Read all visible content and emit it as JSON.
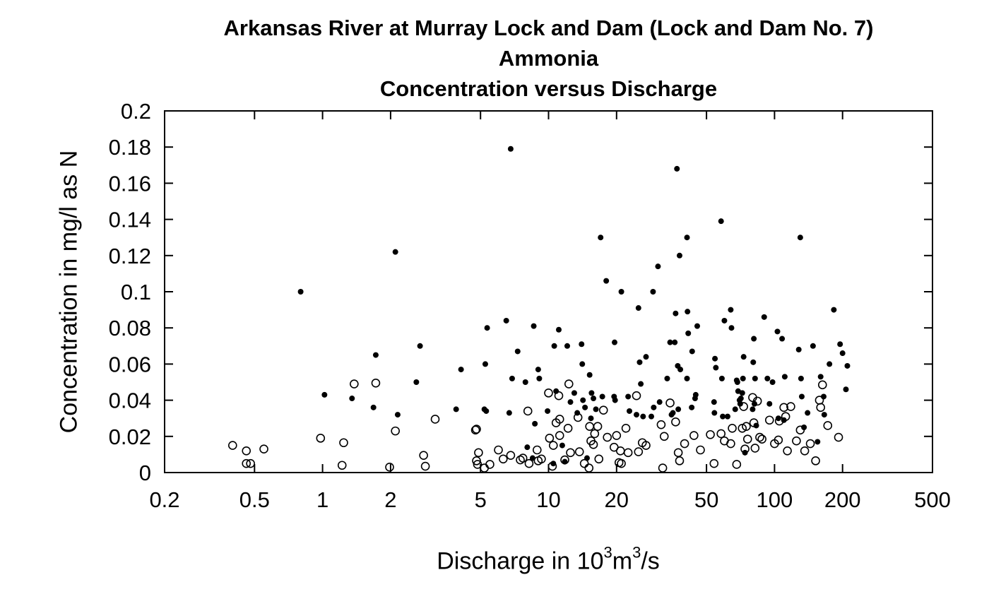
{
  "chart_data": {
    "type": "scatter",
    "title": "Arkansas River at Murray Lock and Dam (Lock and Dam No. 7)",
    "subtitle_lines": [
      "Ammonia",
      "Concentration versus Discharge"
    ],
    "xlabel": {
      "prefix": "Discharge in 10",
      "sup1": "3",
      "mid": "m",
      "sup2": "3",
      "suffix": "/s"
    },
    "ylabel": "Concentration in mg/l as N",
    "x_scale": "log",
    "xlim": [
      0.2,
      500
    ],
    "ylim": [
      0,
      0.2
    ],
    "x_ticks": [
      0.2,
      0.5,
      1,
      2,
      5,
      10,
      20,
      50,
      100,
      200,
      500
    ],
    "x_tick_labels": [
      "0.2",
      "0.5",
      "1",
      "2",
      "5",
      "10",
      "20",
      "50",
      "100",
      "200",
      "500"
    ],
    "y_ticks": [
      0,
      0.02,
      0.04,
      0.06,
      0.08,
      0.1,
      0.12,
      0.14,
      0.16,
      0.18,
      0.2
    ],
    "y_tick_labels": [
      "0",
      "0.02",
      "0.04",
      "0.06",
      "0.08",
      "0.1",
      "0.12",
      "0.14",
      "0.16",
      "0.18",
      "0.2"
    ],
    "grid": false,
    "series": [
      {
        "marker": "filled-circle",
        "points": [
          [
            0.8,
            0.1
          ],
          [
            1.02,
            0.043
          ],
          [
            1.35,
            0.041
          ],
          [
            1.68,
            0.036
          ],
          [
            1.72,
            0.065
          ],
          [
            2.1,
            0.122
          ],
          [
            2.15,
            0.032
          ],
          [
            2.6,
            0.05
          ],
          [
            2.7,
            0.07
          ],
          [
            3.9,
            0.035
          ],
          [
            4.1,
            0.057
          ],
          [
            5.2,
            0.035
          ],
          [
            5.25,
            0.06
          ],
          [
            5.35,
            0.08
          ],
          [
            5.3,
            0.034
          ],
          [
            6.5,
            0.084
          ],
          [
            6.7,
            0.033
          ],
          [
            6.8,
            0.179
          ],
          [
            6.9,
            0.052
          ],
          [
            7.3,
            0.067
          ],
          [
            7.9,
            0.05
          ],
          [
            8.05,
            0.014
          ],
          [
            8.5,
            0.008
          ],
          [
            8.6,
            0.081
          ],
          [
            8.7,
            0.027
          ],
          [
            9.0,
            0.057
          ],
          [
            9.1,
            0.052
          ],
          [
            9.9,
            0.034
          ],
          [
            10.5,
            0.005
          ],
          [
            10.6,
            0.07
          ],
          [
            10.8,
            0.045
          ],
          [
            11.1,
            0.079
          ],
          [
            11.5,
            0.015
          ],
          [
            11.8,
            0.006
          ],
          [
            12.1,
            0.07
          ],
          [
            12.5,
            0.039
          ],
          [
            13.0,
            0.044
          ],
          [
            13.4,
            0.033
          ],
          [
            14.0,
            0.071
          ],
          [
            14.1,
            0.06
          ],
          [
            14.2,
            0.04
          ],
          [
            14.5,
            0.036
          ],
          [
            14.8,
            0.008
          ],
          [
            15.2,
            0.054
          ],
          [
            15.4,
            0.03
          ],
          [
            15.5,
            0.044
          ],
          [
            15.8,
            0.041
          ],
          [
            16.2,
            0.035
          ],
          [
            17.0,
            0.13
          ],
          [
            17.3,
            0.042
          ],
          [
            18.0,
            0.106
          ],
          [
            19.5,
            0.042
          ],
          [
            19.7,
            0.04
          ],
          [
            19.6,
            0.072
          ],
          [
            21.0,
            0.1
          ],
          [
            22.5,
            0.042
          ],
          [
            22.8,
            0.034
          ],
          [
            24.5,
            0.032
          ],
          [
            25.0,
            0.091
          ],
          [
            25.3,
            0.061
          ],
          [
            25.6,
            0.049
          ],
          [
            26.2,
            0.031
          ],
          [
            27.0,
            0.064
          ],
          [
            28.5,
            0.031
          ],
          [
            29.0,
            0.1
          ],
          [
            29.2,
            0.036
          ],
          [
            30.5,
            0.114
          ],
          [
            31.0,
            0.039
          ],
          [
            33.5,
            0.052
          ],
          [
            34.5,
            0.072
          ],
          [
            35.0,
            0.032
          ],
          [
            35.5,
            0.033
          ],
          [
            36.2,
            0.072
          ],
          [
            36.5,
            0.088
          ],
          [
            37.0,
            0.168
          ],
          [
            37.3,
            0.059
          ],
          [
            38.0,
            0.12
          ],
          [
            38.3,
            0.057
          ],
          [
            37.5,
            0.035
          ],
          [
            41.0,
            0.13
          ],
          [
            41.2,
            0.089
          ],
          [
            41.5,
            0.077
          ],
          [
            41.0,
            0.052
          ],
          [
            43.0,
            0.036
          ],
          [
            43.2,
            0.067
          ],
          [
            44.5,
            0.041
          ],
          [
            45.5,
            0.081
          ],
          [
            44.8,
            0.043
          ],
          [
            54.5,
            0.063
          ],
          [
            55.0,
            0.058
          ],
          [
            54.0,
            0.039
          ],
          [
            54.2,
            0.033
          ],
          [
            58.0,
            0.139
          ],
          [
            58.5,
            0.052
          ],
          [
            59.0,
            0.031
          ],
          [
            60.0,
            0.084
          ],
          [
            62.0,
            0.031
          ],
          [
            64.0,
            0.09
          ],
          [
            64.5,
            0.08
          ],
          [
            67.0,
            0.035
          ],
          [
            68.0,
            0.051
          ],
          [
            68.5,
            0.05
          ],
          [
            69.0,
            0.045
          ],
          [
            70.0,
            0.04
          ],
          [
            70.5,
            0.038
          ],
          [
            71.0,
            0.041
          ],
          [
            72.0,
            0.044
          ],
          [
            72.5,
            0.052
          ],
          [
            73.0,
            0.064
          ],
          [
            74.0,
            0.011
          ],
          [
            80.0,
            0.035
          ],
          [
            80.5,
            0.061
          ],
          [
            81.0,
            0.074
          ],
          [
            81.5,
            0.038
          ],
          [
            82.0,
            0.052
          ],
          [
            83.0,
            0.026
          ],
          [
            90.0,
            0.086
          ],
          [
            93.0,
            0.052
          ],
          [
            95.0,
            0.038
          ],
          [
            98.0,
            0.05
          ],
          [
            103.0,
            0.078
          ],
          [
            104.0,
            0.03
          ],
          [
            108.0,
            0.074
          ],
          [
            110.0,
            0.029
          ],
          [
            111.0,
            0.053
          ],
          [
            128.0,
            0.068
          ],
          [
            130.0,
            0.13
          ],
          [
            131.0,
            0.052
          ],
          [
            132.0,
            0.042
          ],
          [
            135.0,
            0.025
          ],
          [
            140.0,
            0.033
          ],
          [
            148.0,
            0.07
          ],
          [
            155.0,
            0.017
          ],
          [
            160.0,
            0.053
          ],
          [
            165.0,
            0.042
          ],
          [
            166.0,
            0.032
          ],
          [
            175.0,
            0.06
          ],
          [
            183.0,
            0.09
          ],
          [
            195.0,
            0.071
          ],
          [
            200.0,
            0.066
          ],
          [
            207.0,
            0.046
          ],
          [
            210.0,
            0.059
          ]
        ]
      },
      {
        "marker": "open-circle",
        "points": [
          [
            0.4,
            0.015
          ],
          [
            0.46,
            0.012
          ],
          [
            0.46,
            0.005
          ],
          [
            0.48,
            0.005
          ],
          [
            0.55,
            0.013
          ],
          [
            0.98,
            0.019
          ],
          [
            1.22,
            0.004
          ],
          [
            1.24,
            0.0165
          ],
          [
            1.38,
            0.049
          ],
          [
            1.72,
            0.0495
          ],
          [
            1.98,
            0.003
          ],
          [
            2.1,
            0.023
          ],
          [
            2.8,
            0.0095
          ],
          [
            2.85,
            0.0035
          ],
          [
            3.15,
            0.0295
          ],
          [
            4.75,
            0.0235
          ],
          [
            4.8,
            0.024
          ],
          [
            4.8,
            0.0065
          ],
          [
            4.85,
            0.0045
          ],
          [
            4.9,
            0.011
          ],
          [
            5.2,
            0.0025
          ],
          [
            5.5,
            0.0045
          ],
          [
            6.0,
            0.0125
          ],
          [
            6.3,
            0.0075
          ],
          [
            6.8,
            0.0095
          ],
          [
            7.5,
            0.007
          ],
          [
            7.7,
            0.008
          ],
          [
            8.1,
            0.034
          ],
          [
            8.2,
            0.005
          ],
          [
            8.9,
            0.0125
          ],
          [
            9.0,
            0.0065
          ],
          [
            9.3,
            0.0075
          ],
          [
            10.0,
            0.044
          ],
          [
            10.1,
            0.019
          ],
          [
            10.4,
            0.0035
          ],
          [
            10.5,
            0.015
          ],
          [
            10.8,
            0.0275
          ],
          [
            11.1,
            0.0425
          ],
          [
            11.2,
            0.0295
          ],
          [
            11.2,
            0.0205
          ],
          [
            11.8,
            0.007
          ],
          [
            12.2,
            0.0245
          ],
          [
            12.3,
            0.049
          ],
          [
            12.5,
            0.011
          ],
          [
            13.5,
            0.0305
          ],
          [
            13.7,
            0.0115
          ],
          [
            14.4,
            0.005
          ],
          [
            15.1,
            0.0025
          ],
          [
            15.2,
            0.0255
          ],
          [
            15.4,
            0.0175
          ],
          [
            15.8,
            0.0155
          ],
          [
            16.0,
            0.0215
          ],
          [
            16.5,
            0.0255
          ],
          [
            16.7,
            0.0075
          ],
          [
            17.5,
            0.0345
          ],
          [
            18.2,
            0.0195
          ],
          [
            19.5,
            0.014
          ],
          [
            20.0,
            0.0205
          ],
          [
            20.8,
            0.012
          ],
          [
            20.5,
            0.0055
          ],
          [
            21.0,
            0.005
          ],
          [
            22.0,
            0.0245
          ],
          [
            22.5,
            0.011
          ],
          [
            24.5,
            0.0425
          ],
          [
            25.0,
            0.0115
          ],
          [
            26.0,
            0.0165
          ],
          [
            27.0,
            0.015
          ],
          [
            31.5,
            0.0265
          ],
          [
            32.0,
            0.0025
          ],
          [
            32.5,
            0.02
          ],
          [
            34.5,
            0.0385
          ],
          [
            36.5,
            0.028
          ],
          [
            37.5,
            0.011
          ],
          [
            38.0,
            0.0065
          ],
          [
            40.0,
            0.016
          ],
          [
            44.0,
            0.0205
          ],
          [
            47.0,
            0.0125
          ],
          [
            52.0,
            0.021
          ],
          [
            54.0,
            0.005
          ],
          [
            58.0,
            0.0215
          ],
          [
            60.0,
            0.0175
          ],
          [
            64.0,
            0.016
          ],
          [
            65.0,
            0.0245
          ],
          [
            68.0,
            0.0045
          ],
          [
            72.0,
            0.0245
          ],
          [
            73.0,
            0.0365
          ],
          [
            74.0,
            0.013
          ],
          [
            75.0,
            0.0255
          ],
          [
            76.0,
            0.0185
          ],
          [
            80.0,
            0.0415
          ],
          [
            81.0,
            0.0275
          ],
          [
            82.0,
            0.0135
          ],
          [
            84.0,
            0.0395
          ],
          [
            86.0,
            0.0195
          ],
          [
            88.0,
            0.0185
          ],
          [
            95.0,
            0.029
          ],
          [
            100.0,
            0.016
          ],
          [
            104.0,
            0.018
          ],
          [
            105.0,
            0.0285
          ],
          [
            110.0,
            0.036
          ],
          [
            112.0,
            0.031
          ],
          [
            114.0,
            0.012
          ],
          [
            118.0,
            0.0365
          ],
          [
            125.0,
            0.0175
          ],
          [
            130.0,
            0.0235
          ],
          [
            136.0,
            0.012
          ],
          [
            144.0,
            0.016
          ],
          [
            152.0,
            0.0065
          ],
          [
            158.0,
            0.04
          ],
          [
            160.0,
            0.036
          ],
          [
            163.0,
            0.0485
          ],
          [
            172.0,
            0.026
          ],
          [
            192.0,
            0.0195
          ]
        ]
      }
    ]
  }
}
